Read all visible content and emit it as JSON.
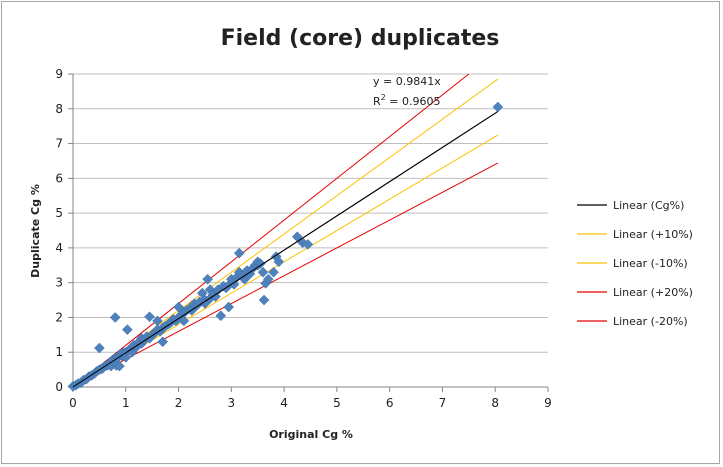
{
  "chart_data": {
    "type": "scatter",
    "title": "Field (core) duplicates",
    "xlabel": "Original Cg %",
    "ylabel": "Duplicate Cg %",
    "xlim": [
      0,
      9
    ],
    "ylim": [
      0,
      9
    ],
    "x_ticks": [
      "0",
      "1",
      "2",
      "3",
      "4",
      "5",
      "6",
      "7",
      "8",
      "9"
    ],
    "y_ticks": [
      "0",
      "1",
      "2",
      "3",
      "4",
      "5",
      "6",
      "7",
      "8",
      "9"
    ],
    "grid": "horizontal",
    "legend_position": "right",
    "marker_color": "#4f81bd",
    "annotation": {
      "equation": "y = 0.9841x",
      "r2_prefix": "R",
      "r2_sup": "2",
      "r2_value": " = 0.9605"
    },
    "lines": [
      {
        "name": "Linear (Cg%)",
        "slope": 0.9841,
        "color": "#000000"
      },
      {
        "name": "Linear (+10%)",
        "slope": 1.1,
        "color": "#ffc000"
      },
      {
        "name": "Linear (-10%)",
        "slope": 0.9,
        "color": "#ffc000"
      },
      {
        "name": "Linear (+20%)",
        "slope": 1.2,
        "color": "#e60000"
      },
      {
        "name": "Linear (-20%)",
        "slope": 0.8,
        "color": "#e60000"
      }
    ],
    "points": [
      [
        0.0,
        0.02
      ],
      [
        0.05,
        0.05
      ],
      [
        0.1,
        0.1
      ],
      [
        0.15,
        0.12
      ],
      [
        0.2,
        0.2
      ],
      [
        0.25,
        0.22
      ],
      [
        0.3,
        0.3
      ],
      [
        0.35,
        0.33
      ],
      [
        0.4,
        0.38
      ],
      [
        0.45,
        0.45
      ],
      [
        0.5,
        0.5
      ],
      [
        0.5,
        1.12
      ],
      [
        0.55,
        0.52
      ],
      [
        0.6,
        0.6
      ],
      [
        0.65,
        0.62
      ],
      [
        0.7,
        0.7
      ],
      [
        0.72,
        0.6
      ],
      [
        0.75,
        0.78
      ],
      [
        0.8,
        0.82
      ],
      [
        0.82,
        0.62
      ],
      [
        0.8,
        2.0
      ],
      [
        0.85,
        0.85
      ],
      [
        0.88,
        0.6
      ],
      [
        0.9,
        0.95
      ],
      [
        0.92,
        0.9
      ],
      [
        0.95,
        0.98
      ],
      [
        1.0,
        1.0
      ],
      [
        1.0,
        0.85
      ],
      [
        1.03,
        1.65
      ],
      [
        1.05,
        1.05
      ],
      [
        1.1,
        1.1
      ],
      [
        1.12,
        1.0
      ],
      [
        1.15,
        1.2
      ],
      [
        1.2,
        1.15
      ],
      [
        1.25,
        1.3
      ],
      [
        1.3,
        1.25
      ],
      [
        1.3,
        1.4
      ],
      [
        1.35,
        1.35
      ],
      [
        1.4,
        1.45
      ],
      [
        1.45,
        1.4
      ],
      [
        1.45,
        2.02
      ],
      [
        1.5,
        1.5
      ],
      [
        1.55,
        1.55
      ],
      [
        1.6,
        1.9
      ],
      [
        1.6,
        1.65
      ],
      [
        1.65,
        1.6
      ],
      [
        1.7,
        1.7
      ],
      [
        1.7,
        1.3
      ],
      [
        1.75,
        1.75
      ],
      [
        1.8,
        1.8
      ],
      [
        1.85,
        1.85
      ],
      [
        1.9,
        1.95
      ],
      [
        1.95,
        1.9
      ],
      [
        2.0,
        2.0
      ],
      [
        2.0,
        2.3
      ],
      [
        2.05,
        2.05
      ],
      [
        2.1,
        1.9
      ],
      [
        2.1,
        2.15
      ],
      [
        2.15,
        2.2
      ],
      [
        2.2,
        2.25
      ],
      [
        2.25,
        2.2
      ],
      [
        2.3,
        2.4
      ],
      [
        2.35,
        2.35
      ],
      [
        2.4,
        2.45
      ],
      [
        2.45,
        2.7
      ],
      [
        2.5,
        2.5
      ],
      [
        2.5,
        2.4
      ],
      [
        2.55,
        3.1
      ],
      [
        2.6,
        2.55
      ],
      [
        2.6,
        2.8
      ],
      [
        2.65,
        2.65
      ],
      [
        2.7,
        2.6
      ],
      [
        2.75,
        2.8
      ],
      [
        2.8,
        2.05
      ],
      [
        2.85,
        2.9
      ],
      [
        2.9,
        2.85
      ],
      [
        2.95,
        2.3
      ],
      [
        3.0,
        3.0
      ],
      [
        3.0,
        3.1
      ],
      [
        3.05,
        2.95
      ],
      [
        3.1,
        3.15
      ],
      [
        3.15,
        3.85
      ],
      [
        3.15,
        3.3
      ],
      [
        3.2,
        3.2
      ],
      [
        3.25,
        3.1
      ],
      [
        3.3,
        3.35
      ],
      [
        3.35,
        3.25
      ],
      [
        3.4,
        3.4
      ],
      [
        3.45,
        3.5
      ],
      [
        3.5,
        3.5
      ],
      [
        3.5,
        3.6
      ],
      [
        3.55,
        3.55
      ],
      [
        3.6,
        3.3
      ],
      [
        3.62,
        2.5
      ],
      [
        3.65,
        2.98
      ],
      [
        3.7,
        3.1
      ],
      [
        3.8,
        3.3
      ],
      [
        3.85,
        3.75
      ],
      [
        3.9,
        3.6
      ],
      [
        4.25,
        4.32
      ],
      [
        4.35,
        4.15
      ],
      [
        4.45,
        4.1
      ],
      [
        8.05,
        8.05
      ]
    ]
  }
}
